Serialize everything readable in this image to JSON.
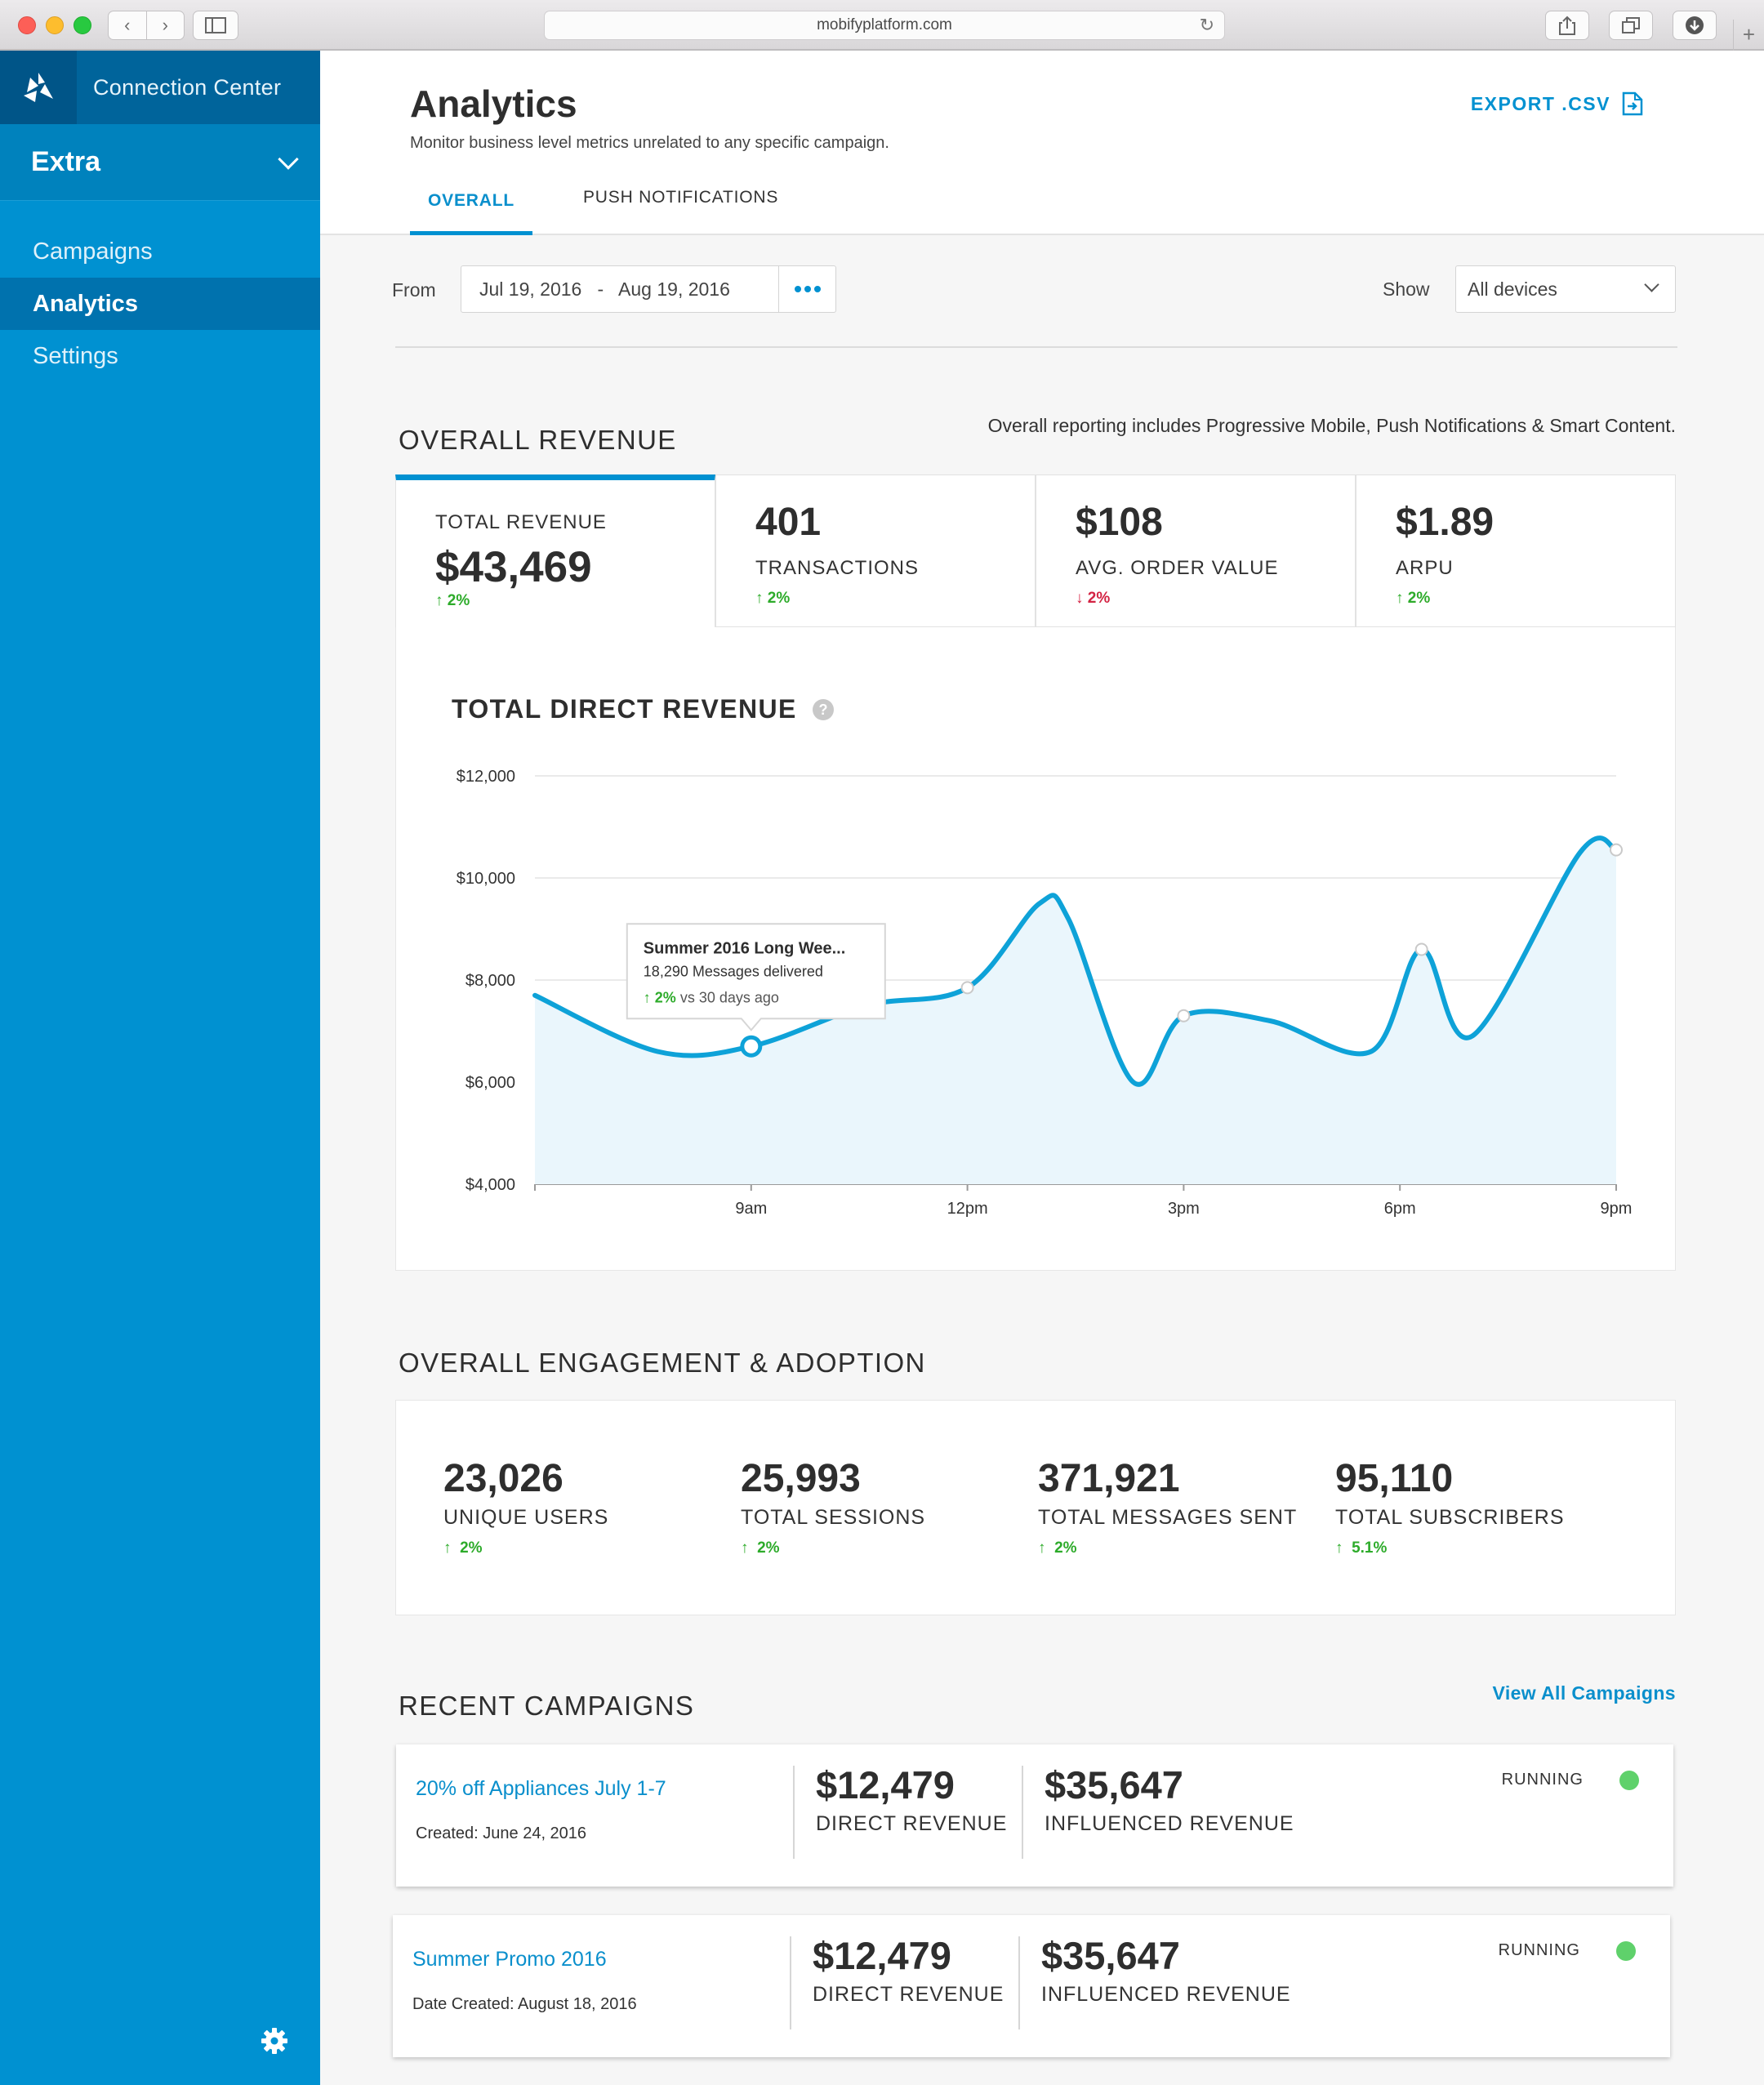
{
  "browser": {
    "url": "mobifyplatform.com",
    "back_icon": "chevron-left-icon",
    "forward_icon": "chevron-right-icon"
  },
  "sidebar": {
    "brand_title": "Connection Center",
    "org_name": "Extra",
    "items": [
      {
        "label": "Campaigns",
        "active": false
      },
      {
        "label": "Analytics",
        "active": true
      },
      {
        "label": "Settings",
        "active": false
      }
    ]
  },
  "header": {
    "title": "Analytics",
    "subtitle": "Monitor business level metrics unrelated to any specific campaign.",
    "export_label": "EXPORT .CSV",
    "tabs": [
      {
        "label": "OVERALL",
        "active": true
      },
      {
        "label": "PUSH NOTIFICATIONS",
        "active": false
      }
    ]
  },
  "filters": {
    "from_label": "From",
    "date_range": "Jul 19, 2016   -   Aug 19, 2016",
    "show_label": "Show",
    "device_select": "All devices"
  },
  "revenue": {
    "section_title": "OVERALL REVENUE",
    "note": "Overall reporting includes Progressive Mobile, Push Notifications & Smart Content.",
    "kpis": [
      {
        "value": "$43,469",
        "label": "TOTAL REVENUE",
        "change": "2%",
        "direction": "up"
      },
      {
        "value": "401",
        "label": "TRANSACTIONS",
        "change": "2%",
        "direction": "up"
      },
      {
        "value": "$108",
        "label": "AVG. ORDER VALUE",
        "change": "2%",
        "direction": "down"
      },
      {
        "value": "$1.89",
        "label": "ARPU",
        "change": "2%",
        "direction": "up"
      }
    ],
    "chart_title": "TOTAL DIRECT REVENUE",
    "tooltip": {
      "title": "Summer 2016 Long Wee...",
      "line2": "18,290 Messages delivered",
      "change": "2%",
      "suffix": "vs 30 days ago"
    }
  },
  "chart_data": {
    "type": "area",
    "title": "TOTAL DIRECT REVENUE",
    "xlabel": "",
    "ylabel": "",
    "x_ticks": [
      "9am",
      "12pm",
      "3pm",
      "6pm",
      "9pm"
    ],
    "y_ticks": [
      "$4,000",
      "$6,000",
      "$8,000",
      "$10,000",
      "$12,000"
    ],
    "ylim": [
      4000,
      12000
    ],
    "x_range_hours": [
      6,
      21
    ],
    "series": [
      {
        "points": [
          {
            "x": 6.0,
            "y": 7700
          },
          {
            "x": 7.7,
            "y": 6600
          },
          {
            "x": 9.0,
            "y": 6700
          },
          {
            "x": 10.6,
            "y": 7500
          },
          {
            "x": 12.0,
            "y": 7850
          },
          {
            "x": 13.0,
            "y": 9500
          },
          {
            "x": 13.4,
            "y": 9200
          },
          {
            "x": 14.3,
            "y": 6000
          },
          {
            "x": 15.0,
            "y": 7300
          },
          {
            "x": 16.2,
            "y": 7200
          },
          {
            "x": 17.6,
            "y": 6600
          },
          {
            "x": 18.3,
            "y": 8600
          },
          {
            "x": 19.0,
            "y": 6900
          },
          {
            "x": 20.5,
            "y": 10500
          },
          {
            "x": 21.0,
            "y": 10550
          }
        ],
        "markers_at": [
          9.0,
          12.0,
          15.0,
          18.3,
          21.0
        ],
        "highlight_at": 9.0
      }
    ],
    "colors": {
      "line": "#0ea2d8",
      "fill": "#eaf6fc",
      "grid": "#e4e4e4"
    },
    "grid": true,
    "legend": "none"
  },
  "engagement": {
    "section_title": "OVERALL ENGAGEMENT & ADOPTION",
    "metrics": [
      {
        "value": "23,026",
        "label": "UNIQUE USERS",
        "change": "2%"
      },
      {
        "value": "25,993",
        "label": "TOTAL SESSIONS",
        "change": "2%"
      },
      {
        "value": "371,921",
        "label": "TOTAL MESSAGES SENT",
        "change": "2%"
      },
      {
        "value": "95,110",
        "label": "TOTAL SUBSCRIBERS",
        "change": "5.1%"
      }
    ]
  },
  "campaigns": {
    "section_title": "RECENT CAMPAIGNS",
    "view_all": "View All Campaigns",
    "items": [
      {
        "name": "20% off Appliances July 1-7",
        "created": "Created: June 24, 2016",
        "direct": "$12,479",
        "direct_label": "DIRECT REVENUE",
        "influenced": "$35,647",
        "influenced_label": "INFLUENCED REVENUE",
        "status": "RUNNING"
      },
      {
        "name": "Summer Promo 2016",
        "created": "Date Created: August 18, 2016",
        "direct": "$12,479",
        "direct_label": "DIRECT REVENUE",
        "influenced": "$35,647",
        "influenced_label": "INFLUENCED REVENUE",
        "status": "RUNNING"
      }
    ]
  },
  "colors": {
    "accent": "#0091d1",
    "up": "#2dab2a",
    "down": "#d32343",
    "running": "#5fd16b"
  }
}
